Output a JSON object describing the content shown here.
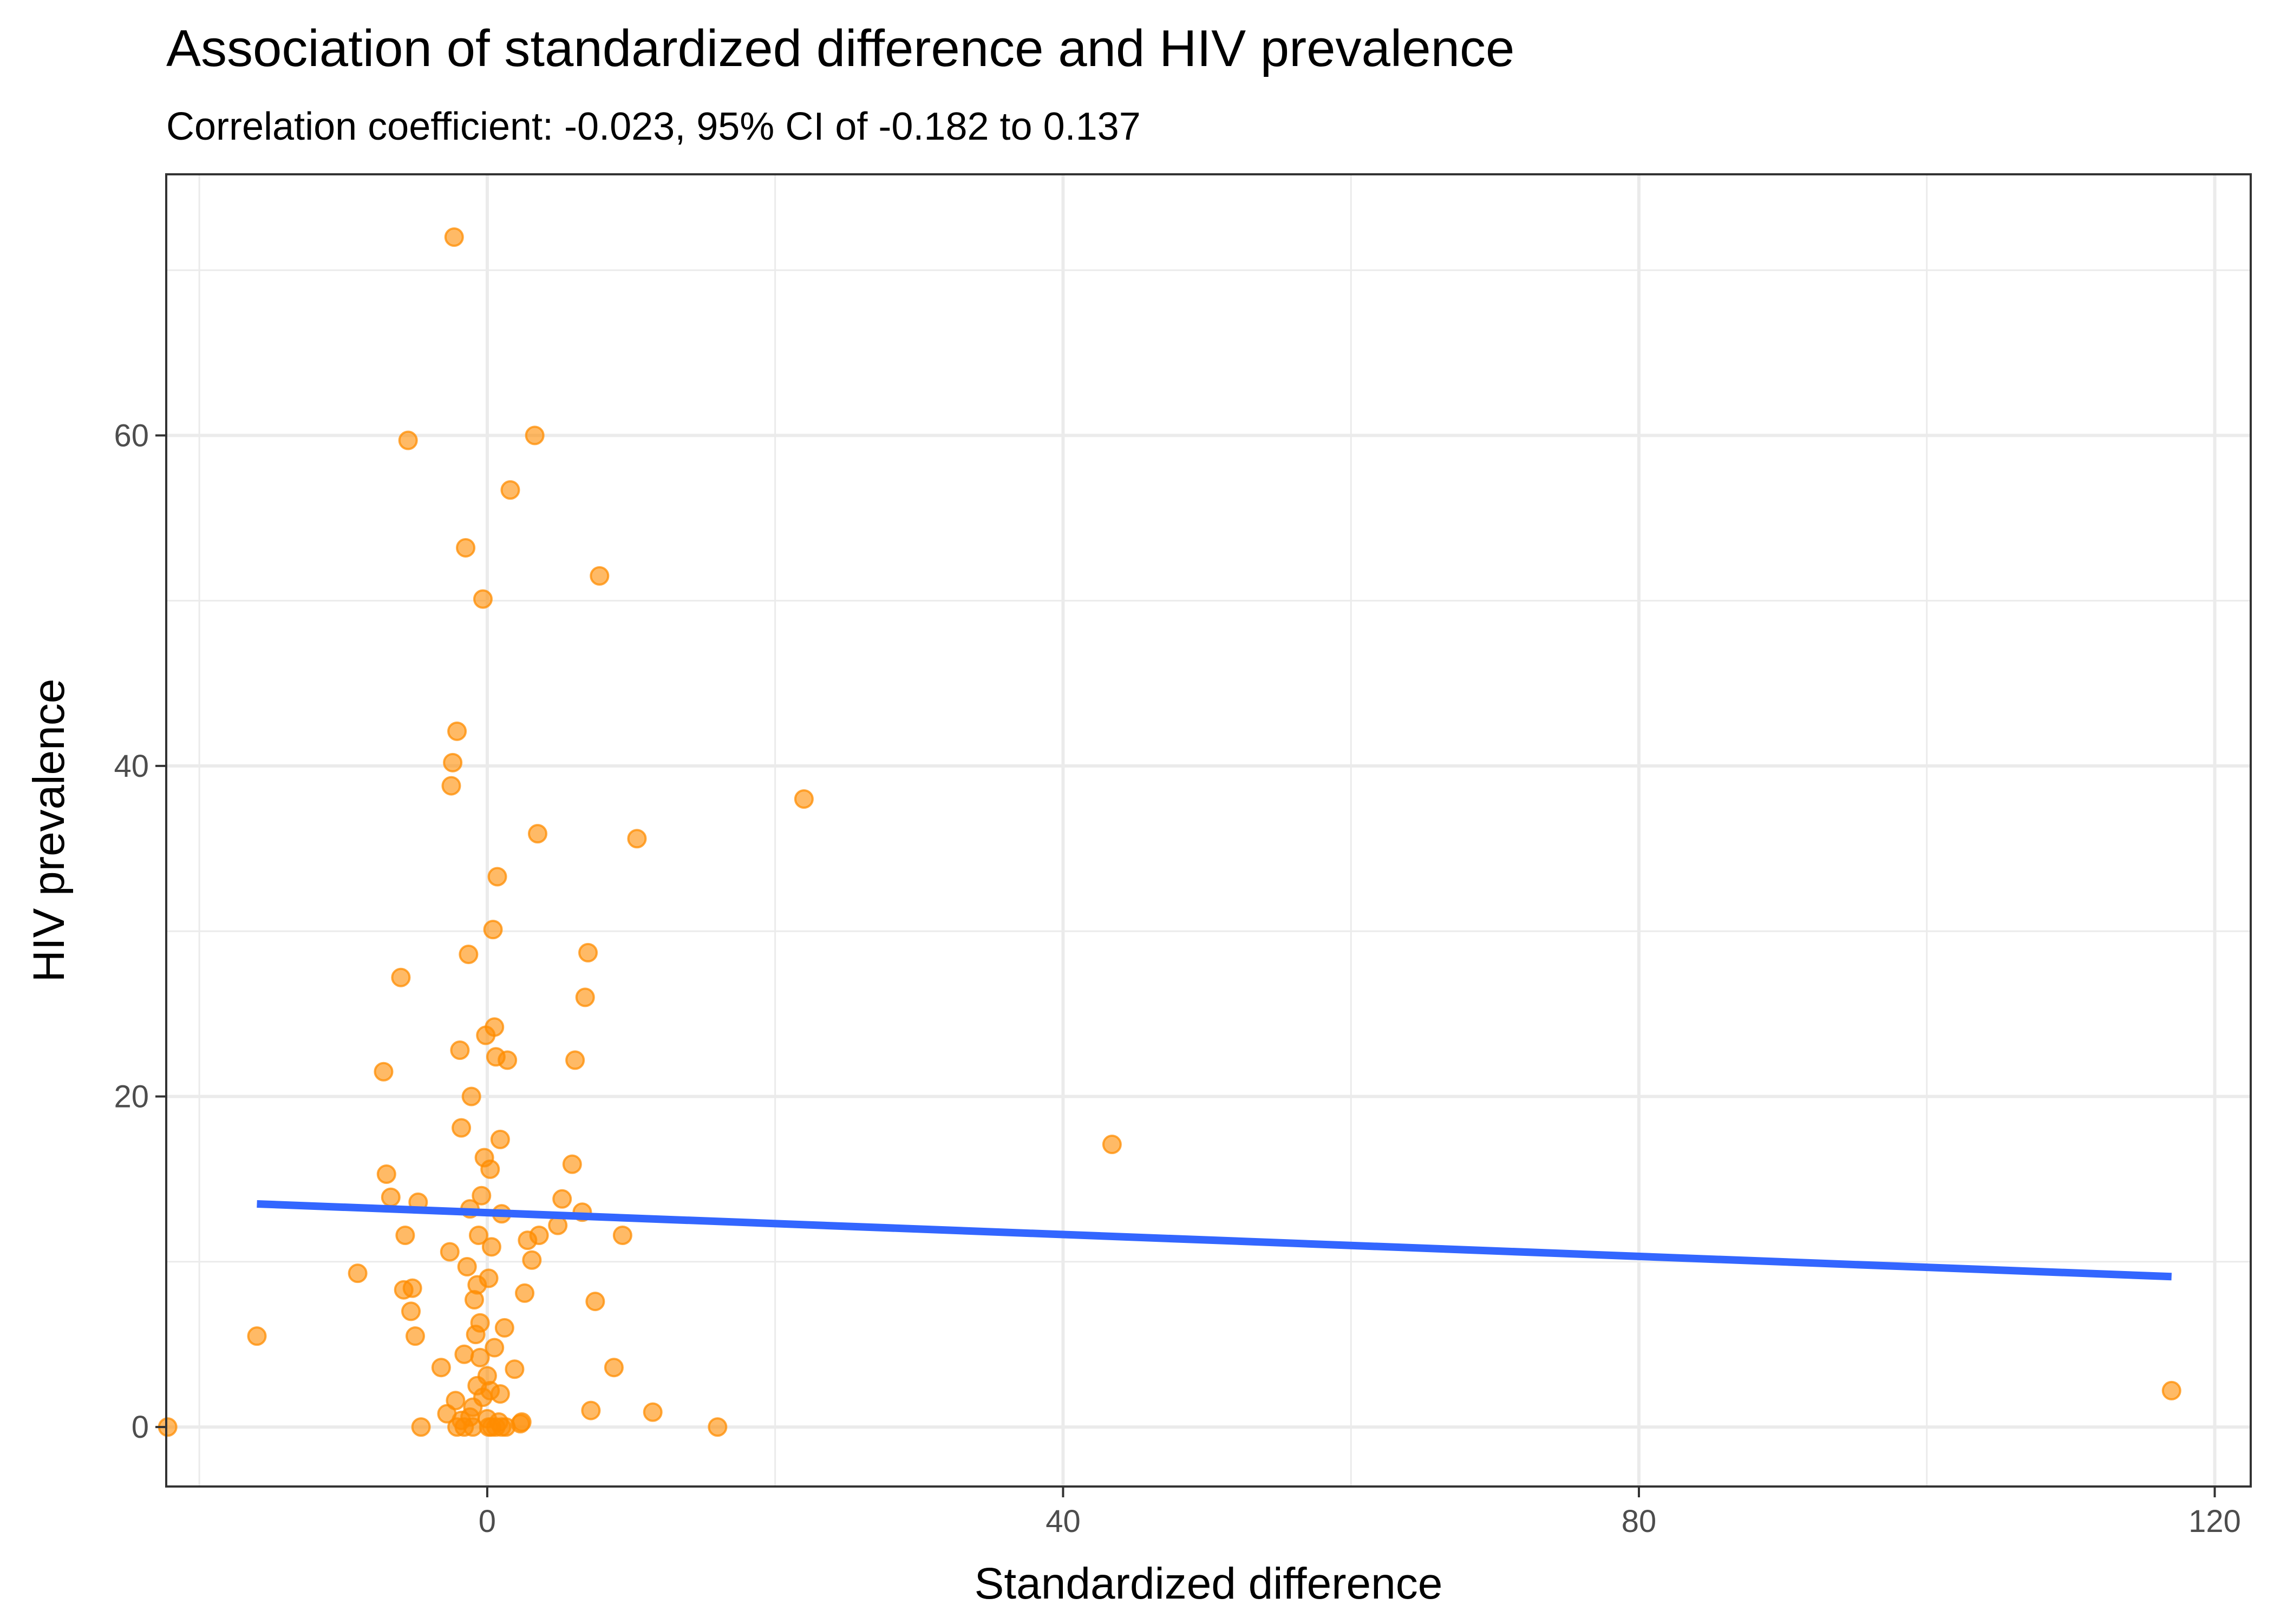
{
  "chart_data": {
    "type": "scatter",
    "title": "Association of standardized difference and HIV prevalence",
    "subtitle": "Correlation coefficient: -0.023, 95% CI of -0.182 to 0.137",
    "xlabel": "Standardized difference",
    "ylabel": "HIV prevalence",
    "xlim": [
      -22.3,
      122.5
    ],
    "ylim": [
      -3.6,
      75.8
    ],
    "x_ticks": [
      0,
      40,
      80,
      120
    ],
    "y_ticks": [
      0,
      20,
      40,
      60
    ],
    "x_tick_labels": [
      "0",
      "40",
      "80",
      "120"
    ],
    "y_tick_labels": [
      "0",
      "20",
      "40",
      "60"
    ],
    "grid": true,
    "point_color": "#FF8C00",
    "line_color": "#3366FF",
    "regression_line": {
      "x": [
        -16.0,
        117.0
      ],
      "y": [
        13.5,
        9.1
      ]
    },
    "points": {
      "x": [
        -22.2,
        -16.0,
        -9.0,
        -7.2,
        -7.0,
        -6.7,
        -6.0,
        -5.8,
        -5.7,
        -5.5,
        -5.3,
        -5.2,
        -5.0,
        -4.8,
        -4.6,
        -3.2,
        -2.8,
        -2.6,
        -2.5,
        -2.4,
        -2.3,
        -2.2,
        -2.1,
        -1.9,
        -1.8,
        -1.6,
        -1.5,
        -1.4,
        -1.3,
        -1.2,
        -1.1,
        -1.0,
        -0.9,
        -0.8,
        -0.7,
        -0.6,
        -0.5,
        -0.4,
        -0.3,
        -0.2,
        -0.1,
        0.0,
        0.0,
        0.1,
        0.2,
        0.3,
        0.4,
        0.5,
        0.6,
        0.7,
        0.8,
        0.9,
        1.0,
        1.2,
        1.4,
        1.6,
        1.9,
        2.3,
        2.6,
        2.8,
        3.1,
        3.3,
        3.5,
        4.9,
        5.2,
        5.9,
        6.1,
        6.6,
        6.8,
        7.0,
        7.2,
        7.5,
        7.8,
        8.8,
        9.4,
        10.4,
        11.5,
        16.0,
        22.0,
        43.4,
        117.0,
        3.6,
        0.3,
        -1.6,
        -0.5,
        0.5,
        -1.2,
        0.9,
        -1.8,
        1.0,
        -0.3,
        0.2,
        -2.1,
        0.6,
        -1.0,
        1.3,
        0.1,
        -0.7,
        2.4
      ],
      "y": [
        0.0,
        5.5,
        9.3,
        21.5,
        15.3,
        13.9,
        27.2,
        8.3,
        11.6,
        59.7,
        7.0,
        8.4,
        5.5,
        13.6,
        0.0,
        3.6,
        0.8,
        10.6,
        38.8,
        40.2,
        72.0,
        1.6,
        42.1,
        22.8,
        18.1,
        4.4,
        53.2,
        9.7,
        28.6,
        13.2,
        20.0,
        1.2,
        7.7,
        5.6,
        2.5,
        11.6,
        6.3,
        14.0,
        50.1,
        16.3,
        23.7,
        3.1,
        0.5,
        9.0,
        2.2,
        10.9,
        30.1,
        24.2,
        22.4,
        33.3,
        0.3,
        17.4,
        12.9,
        6.0,
        22.2,
        56.7,
        3.5,
        0.2,
        8.1,
        11.3,
        10.1,
        60.0,
        35.9,
        12.2,
        13.8,
        15.9,
        22.2,
        13.0,
        26.0,
        28.7,
        1.0,
        7.6,
        51.5,
        3.6,
        11.6,
        35.6,
        0.9,
        0.0,
        38.0,
        17.1,
        2.2,
        11.6,
        0.0,
        0.0,
        4.2,
        4.8,
        0.6,
        2.0,
        0.4,
        0.0,
        1.8,
        15.6,
        0.0,
        0.0,
        0.0,
        0.0,
        0.0,
        8.6,
        0.3
      ]
    }
  }
}
